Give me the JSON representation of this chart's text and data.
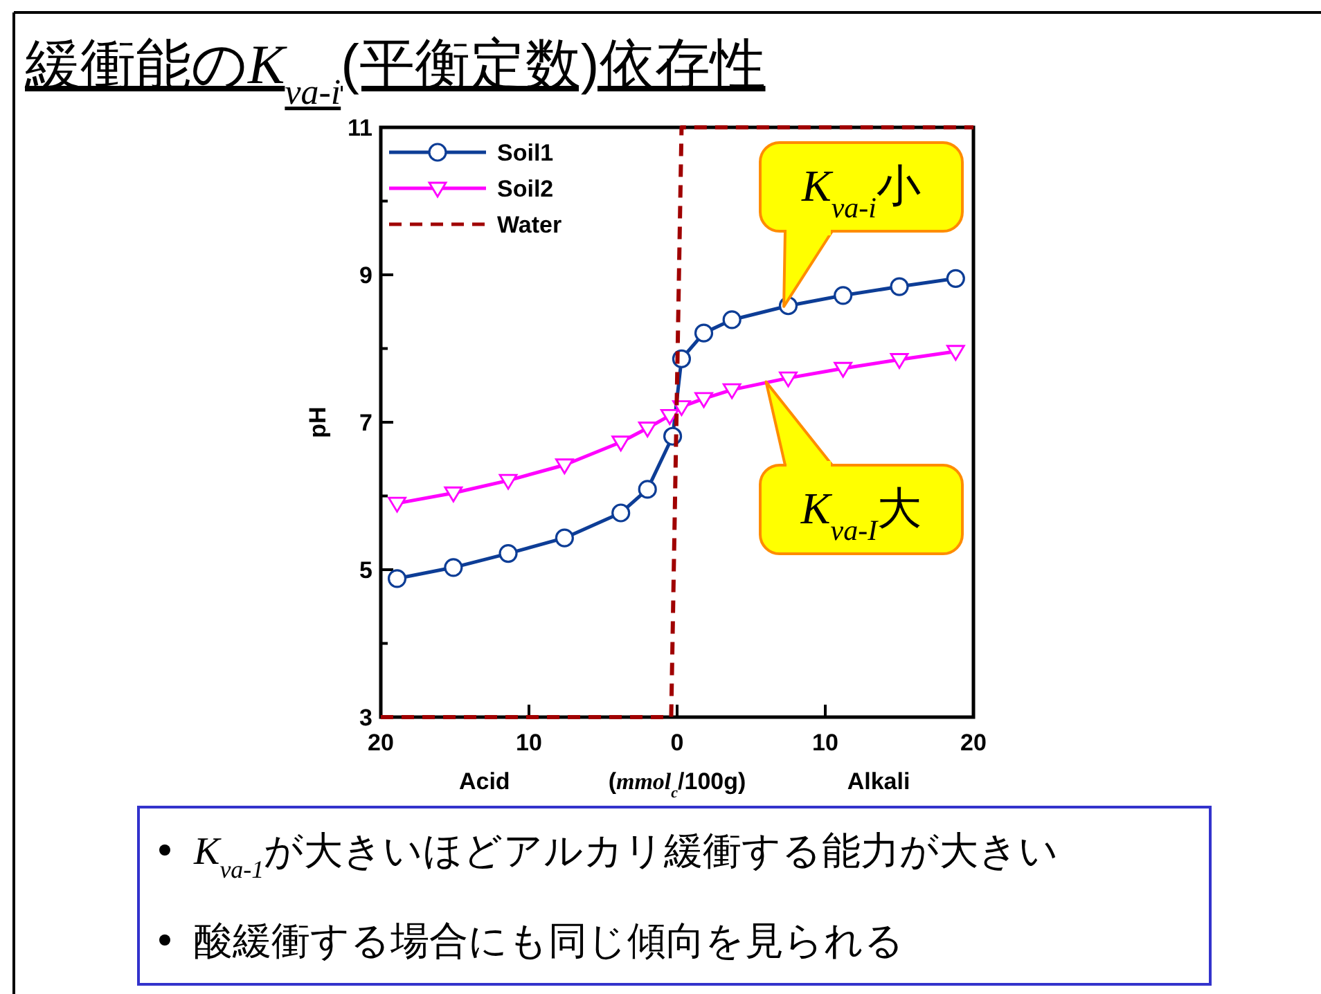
{
  "chart_data": {
    "type": "line",
    "title": "緩衝能のK$_{va-i}$(平衡定数)依存性",
    "xlabel": "(mmol$_{c}$/100g)",
    "ylabel": "pH",
    "xlim": [
      -20,
      20
    ],
    "xticks": [
      {
        "value": -20,
        "label": "20"
      },
      {
        "value": -10,
        "label": "10"
      },
      0,
      10,
      20
    ],
    "ylim": [
      3,
      11
    ],
    "yticks": [
      3,
      {
        "value": 4,
        "label": null
      },
      5,
      {
        "value": 6,
        "label": null
      },
      7,
      {
        "value": 8,
        "label": null
      },
      9,
      {
        "value": 10,
        "label": null
      },
      11
    ],
    "grid": false,
    "legend": "top left",
    "series": [
      {
        "name": "Soil1",
        "color": "#0d3d96",
        "marker": "circle",
        "x": [
          -18.9,
          -15.1,
          -11.4,
          -7.6,
          -3.8,
          -2.0,
          -0.3,
          0.3,
          1.8,
          3.7,
          7.5,
          11.2,
          15.0,
          18.8
        ],
        "values": [
          4.88,
          5.03,
          5.22,
          5.43,
          5.77,
          6.09,
          6.81,
          7.86,
          8.21,
          8.39,
          8.58,
          8.72,
          8.84,
          8.95
        ]
      },
      {
        "name": "Soil2",
        "color": "#ff00ff",
        "marker": "triangle",
        "x": [
          -18.9,
          -15.1,
          -11.4,
          -7.6,
          -3.8,
          -2.0,
          -0.5,
          0.3,
          1.8,
          3.7,
          7.5,
          11.2,
          15.0,
          18.8
        ],
        "values": [
          5.9,
          6.04,
          6.21,
          6.42,
          6.73,
          6.92,
          7.09,
          7.21,
          7.32,
          7.44,
          7.6,
          7.73,
          7.85,
          7.96
        ]
      },
      {
        "name": "Water",
        "color": "#a00000",
        "marker": "none",
        "line_style": "dashed",
        "x": [
          -20,
          -0.4,
          0.3,
          20
        ],
        "values": [
          3,
          3,
          11,
          11
        ]
      }
    ],
    "annotations": [
      {
        "text": "K$_{va-i}$小",
        "x": 7.2,
        "y": 8.57
      },
      {
        "text": "K$_{va-I}$大",
        "x": 6,
        "y": 7.55
      },
      "Acid",
      "Alkali",
      "K$_{va-1}$が大きいほどアルカリ緩衝する能力が大きい",
      "酸緩衝する場合にも同じ傾向を見られる"
    ]
  }
}
